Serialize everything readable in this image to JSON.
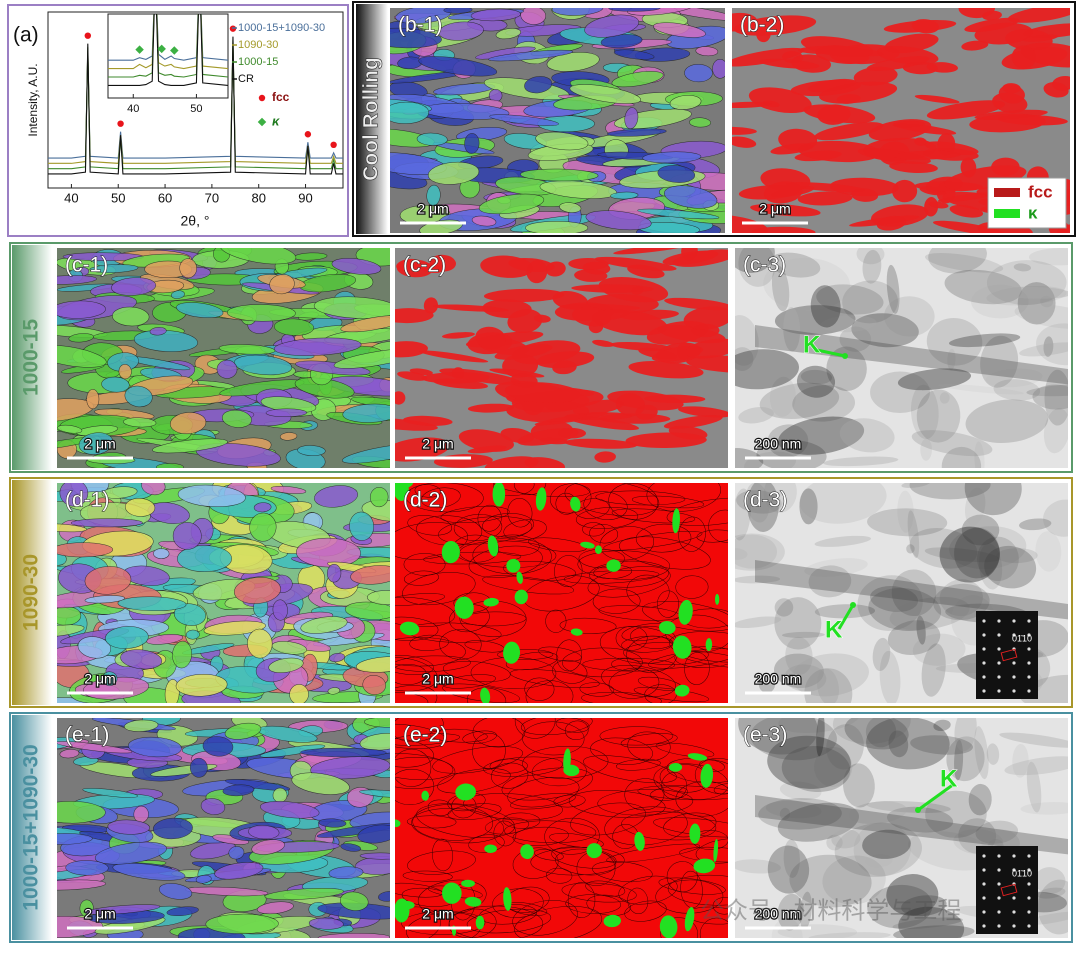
{
  "chart_data": [
    {
      "type": "line",
      "label": "(a)",
      "x_label": "2θ, °",
      "y_label": "Intensity, A.U.",
      "xlim": [
        35,
        98
      ],
      "xticks": [
        40,
        50,
        60,
        70,
        80,
        90
      ],
      "ylim": [
        0,
        100
      ],
      "x": [
        35,
        40,
        43,
        43.5,
        44,
        50,
        50.5,
        51,
        60,
        74,
        74.5,
        75,
        90,
        90.5,
        91,
        95.5,
        96,
        96.5,
        98
      ],
      "series": [
        {
          "name": "1000-15+1090-30",
          "color": "#4a6f9a",
          "values": [
            17,
            17,
            18,
            76,
            18,
            17,
            32,
            17,
            17,
            18,
            80,
            18,
            17,
            26,
            17,
            17,
            20,
            17,
            17
          ]
        },
        {
          "name": "1090-30",
          "color": "#a49a2a",
          "values": [
            14,
            14,
            15,
            78,
            15,
            14,
            30,
            14,
            14,
            15,
            82,
            15,
            14,
            24,
            14,
            14,
            18,
            14,
            14
          ]
        },
        {
          "name": "1000-15",
          "color": "#3f8a2c",
          "values": [
            11,
            11,
            12,
            80,
            12,
            11,
            28,
            11,
            11,
            12,
            84,
            12,
            11,
            22,
            11,
            11,
            16,
            11,
            11
          ]
        },
        {
          "name": "CR",
          "color": "#111111",
          "values": [
            8,
            8,
            9,
            82,
            9,
            8,
            30,
            8,
            8,
            9,
            86,
            9,
            8,
            24,
            8,
            8,
            14,
            8,
            8
          ]
        }
      ],
      "markers": [
        {
          "name": "fcc",
          "color": "#e8141b",
          "shape": "circle",
          "x": [
            43.5,
            50.5,
            74.5,
            90.5,
            96
          ]
        }
      ]
    },
    {
      "type": "line",
      "xlim": [
        36,
        55
      ],
      "xticks": [
        40,
        50
      ],
      "ylim": [
        0,
        100
      ],
      "x": [
        36,
        40,
        41,
        42,
        43,
        43.5,
        44,
        45,
        46,
        46.5,
        48,
        50,
        50.5,
        51,
        55
      ],
      "series": [
        {
          "color": "#4a6f9a",
          "values": [
            45,
            45,
            48,
            46,
            50,
            150,
            52,
            46,
            50,
            47,
            45,
            48,
            150,
            48,
            45
          ]
        },
        {
          "color": "#a49a2a",
          "values": [
            35,
            35,
            40,
            36,
            40,
            150,
            42,
            38,
            40,
            37,
            35,
            38,
            150,
            38,
            35
          ]
        },
        {
          "color": "#3f8a2c",
          "values": [
            25,
            25,
            27,
            26,
            30,
            150,
            30,
            27,
            28,
            26,
            25,
            28,
            150,
            28,
            25
          ]
        },
        {
          "color": "#111111",
          "values": [
            15,
            15,
            15,
            16,
            20,
            150,
            20,
            16,
            15,
            15,
            15,
            18,
            150,
            18,
            15
          ]
        }
      ],
      "markers": [
        {
          "name": "κ",
          "color": "#3cb043",
          "shape": "diamond",
          "x": [
            41,
            44.5,
            46.5
          ]
        }
      ]
    }
  ],
  "rows": [
    {
      "label": "Cool Rolling",
      "images": [
        {
          "label": "(b-1)",
          "scale_bar": "2 μm"
        },
        {
          "label": "(b-2)",
          "scale_bar": "2 μm",
          "legend": [
            "fcc",
            "κ"
          ]
        }
      ]
    },
    {
      "label": "1000-15",
      "images": [
        {
          "label": "(c-1)",
          "scale_bar": "2 μm"
        },
        {
          "label": "(c-2)",
          "scale_bar": "2 μm"
        },
        {
          "label": "(c-3)",
          "scale_bar": "200 nm",
          "annotation": "K"
        }
      ]
    },
    {
      "label": "1090-30",
      "images": [
        {
          "label": "(d-1)",
          "scale_bar": "2 μm"
        },
        {
          "label": "(d-2)",
          "scale_bar": "2 μm"
        },
        {
          "label": "(d-3)",
          "scale_bar": "200 nm",
          "annotation": "K",
          "diffraction": "01̄10"
        }
      ]
    },
    {
      "label": "1000-15+1090-30",
      "images": [
        {
          "label": "(e-1)",
          "scale_bar": "2 μm"
        },
        {
          "label": "(e-2)",
          "scale_bar": "2 μm"
        },
        {
          "label": "(e-3)",
          "scale_bar": "200 nm",
          "annotation": "K",
          "diffraction": "01̄10"
        }
      ]
    }
  ],
  "watermark": "公众号 · 材料科学与工程"
}
